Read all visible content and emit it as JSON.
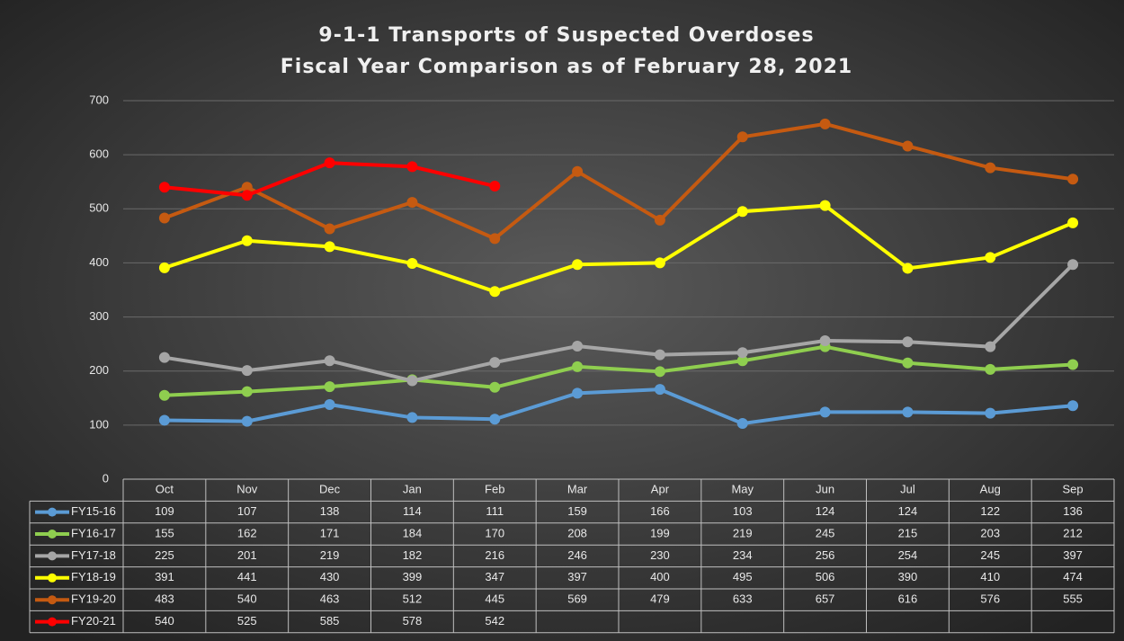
{
  "chart_data": {
    "type": "line",
    "title": "9-1-1 Transports of Suspected Overdoses",
    "subtitle": "Fiscal Year Comparison as of February 28, 2021",
    "categories": [
      "Oct",
      "Nov",
      "Dec",
      "Jan",
      "Feb",
      "Mar",
      "Apr",
      "May",
      "Jun",
      "Jul",
      "Aug",
      "Sep"
    ],
    "ylim": [
      0,
      700
    ],
    "yticks": [
      0,
      100,
      200,
      300,
      400,
      500,
      600,
      700
    ],
    "grid": true,
    "series": [
      {
        "name": "FY15-16",
        "color": "#5b9bd5",
        "values": [
          109,
          107,
          138,
          114,
          111,
          159,
          166,
          103,
          124,
          124,
          122,
          136
        ]
      },
      {
        "name": "FY16-17",
        "color": "#8fce4f",
        "values": [
          155,
          162,
          171,
          184,
          170,
          208,
          199,
          219,
          245,
          215,
          203,
          212
        ]
      },
      {
        "name": "FY17-18",
        "color": "#a6a6a6",
        "values": [
          225,
          201,
          219,
          182,
          216,
          246,
          230,
          234,
          256,
          254,
          245,
          397
        ]
      },
      {
        "name": "FY18-19",
        "color": "#ffff00",
        "values": [
          391,
          441,
          430,
          399,
          347,
          397,
          400,
          495,
          506,
          390,
          410,
          474
        ]
      },
      {
        "name": "FY19-20",
        "color": "#c55a11",
        "values": [
          483,
          540,
          463,
          512,
          445,
          569,
          479,
          633,
          657,
          616,
          576,
          555
        ]
      },
      {
        "name": "FY20-21",
        "color": "#ff0000",
        "values": [
          540,
          525,
          585,
          578,
          542,
          null,
          null,
          null,
          null,
          null,
          null,
          null
        ]
      }
    ]
  }
}
